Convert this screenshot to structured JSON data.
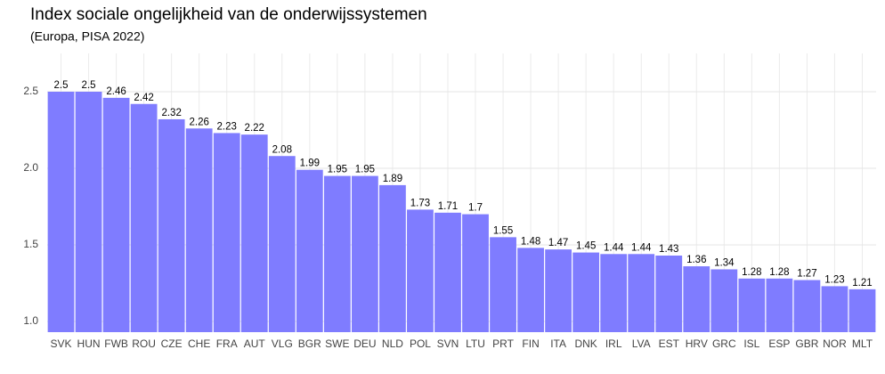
{
  "chart_data": {
    "type": "bar",
    "title": "Index sociale ongelijkheid van de onderwijssystemen",
    "subtitle": "(Europa, PISA 2022)",
    "categories": [
      "SVK",
      "HUN",
      "FWB",
      "ROU",
      "CZE",
      "CHE",
      "FRA",
      "AUT",
      "VLG",
      "BGR",
      "SWE",
      "DEU",
      "NLD",
      "POL",
      "SVN",
      "LTU",
      "PRT",
      "FIN",
      "ITA",
      "DNK",
      "IRL",
      "LVA",
      "EST",
      "HRV",
      "GRC",
      "ISL",
      "ESP",
      "GBR",
      "NOR",
      "MLT"
    ],
    "values": [
      2.5,
      2.5,
      2.46,
      2.42,
      2.32,
      2.26,
      2.23,
      2.22,
      2.08,
      1.99,
      1.95,
      1.95,
      1.89,
      1.73,
      1.71,
      1.7,
      1.55,
      1.48,
      1.47,
      1.45,
      1.44,
      1.44,
      1.43,
      1.36,
      1.34,
      1.28,
      1.28,
      1.27,
      1.23,
      1.21
    ],
    "color": "#7f7cff",
    "ylim": [
      0.93,
      2.75
    ],
    "yticks": [
      {
        "value": 1.0,
        "label": "1.0"
      },
      1.5,
      {
        "value": 2.0,
        "label": "2.0"
      },
      2.5
    ],
    "grid": true
  }
}
